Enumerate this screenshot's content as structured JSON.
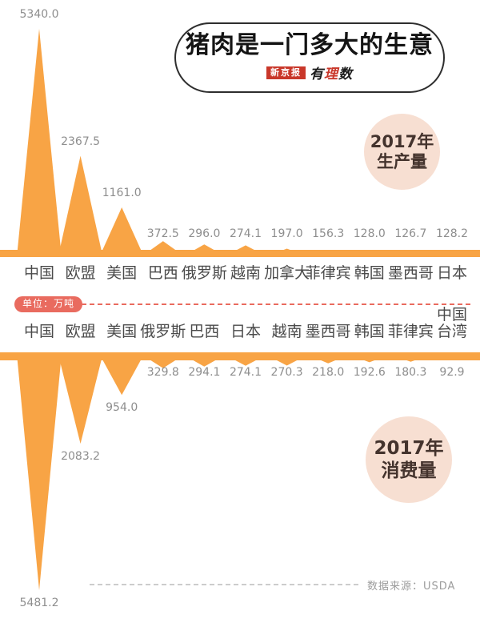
{
  "header": {
    "title": "猪肉是一门多大的生意",
    "logo_box": "新京报",
    "logo_script": [
      "有",
      "理",
      "数"
    ]
  },
  "divider": {
    "unit_label": "单位：万吨"
  },
  "footer": {
    "source": "数据来源：USDA"
  },
  "theme": {
    "orange": "#F8A445",
    "red": "#E96B5F",
    "badge_bg": "#F7DFD2",
    "badge_text": "#44332D",
    "value_text": "#8E8E8E",
    "category_text": "#4A4A4A"
  },
  "chart_data": [
    {
      "type": "area",
      "title": "2017年生产量",
      "badge_lines": [
        "2017年",
        "生产量"
      ],
      "unit": "万吨",
      "orientation": "up",
      "legend_position": "none",
      "grid": false,
      "categories": [
        "中国",
        "欧盟",
        "美国",
        "巴西",
        "俄罗斯",
        "越南",
        "加拿大",
        "菲律宾",
        "韩国",
        "墨西哥",
        "日本"
      ],
      "values": [
        5340.0,
        2367.5,
        1161.0,
        372.5,
        296.0,
        274.1,
        197.0,
        156.3,
        128.0,
        126.7,
        128.2
      ]
    },
    {
      "type": "area",
      "title": "2017年消费量",
      "badge_lines": [
        "2017年",
        "消费量"
      ],
      "unit": "万吨",
      "orientation": "down",
      "legend_position": "none",
      "grid": false,
      "categories": [
        "中国",
        "欧盟",
        "美国",
        "俄罗斯",
        "巴西",
        "日本",
        "越南",
        "墨西哥",
        "韩国",
        "菲律宾",
        "中国\n台湾"
      ],
      "values": [
        5481.2,
        2083.2,
        954.0,
        329.8,
        294.1,
        274.1,
        270.3,
        218.0,
        192.6,
        180.3,
        92.9
      ]
    }
  ]
}
